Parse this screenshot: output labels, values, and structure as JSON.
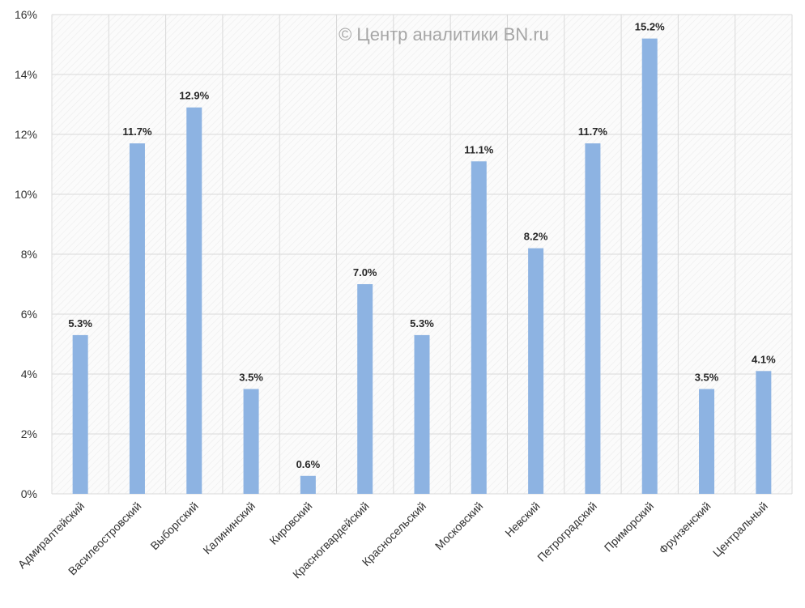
{
  "watermark": "© Центр аналитики BN.ru",
  "colors": {
    "bar": "#8db3e2",
    "grid": "#d9d9d9",
    "axis_text": "#333333",
    "label_text": "#262626",
    "watermark": "#a6a6a6"
  },
  "chart_data": {
    "type": "bar",
    "title": "",
    "xlabel": "",
    "ylabel": "",
    "categories": [
      "Адмиралтейский",
      "Василеостровский",
      "Выборгский",
      "Калининский",
      "Кировский",
      "Красногвардейский",
      "Красносельский",
      "Московский",
      "Невский",
      "Петроградский",
      "Приморский",
      "Фрунзенский",
      "Центральный"
    ],
    "values": [
      5.3,
      11.7,
      12.9,
      3.5,
      0.6,
      7.0,
      5.3,
      11.1,
      8.2,
      11.7,
      15.2,
      3.5,
      4.1
    ],
    "value_labels": [
      "5.3%",
      "11.7%",
      "12.9%",
      "3.5%",
      "0.6%",
      "7.0%",
      "5.3%",
      "11.1%",
      "8.2%",
      "11.7%",
      "15.2%",
      "3.5%",
      "4.1%"
    ],
    "ylim": [
      0,
      16
    ],
    "yticks": [
      0,
      2,
      4,
      6,
      8,
      10,
      12,
      14,
      16
    ],
    "ytick_labels": [
      "0%",
      "2%",
      "4%",
      "6%",
      "8%",
      "10%",
      "12%",
      "14%",
      "16%"
    ],
    "grid": true,
    "legend": "none"
  }
}
